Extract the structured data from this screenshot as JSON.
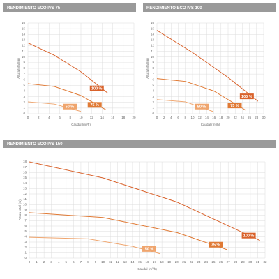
{
  "chart_data": [
    {
      "type": "line",
      "title": "RENDIMIENTO ECO IVS 75",
      "x_label": "Caudal (m³/h)",
      "y_label": "Altura total (m)",
      "xlim": [
        0,
        20
      ],
      "ylim": [
        0,
        16
      ],
      "xticks": [
        0,
        2,
        4,
        6,
        8,
        10,
        12,
        14,
        16,
        18,
        20
      ],
      "yticks": [
        0,
        1,
        2,
        3,
        4,
        5,
        6,
        7,
        8,
        9,
        10,
        11,
        12,
        13,
        14,
        15,
        16
      ],
      "grid": true,
      "series": [
        {
          "name": "100 %",
          "color": "#d9622b",
          "x": [
            0,
            5,
            10,
            15.1
          ],
          "values": [
            12.5,
            10.3,
            7.4,
            3.6
          ]
        },
        {
          "name": "75 %",
          "color": "#e07a35",
          "x": [
            0,
            5,
            10,
            14.7
          ],
          "values": [
            5.3,
            4.8,
            3.2,
            0.7
          ]
        },
        {
          "name": "50 %",
          "color": "#efa56e",
          "x": [
            0,
            5,
            10
          ],
          "values": [
            2.1,
            1.7,
            0.4
          ]
        }
      ]
    },
    {
      "type": "line",
      "title": "RENDIMIENTO ECO IVS 100",
      "x_label": "Caudal (m³/h)",
      "y_label": "Altura total (m)",
      "xlim": [
        0,
        30
      ],
      "ylim": [
        0,
        16
      ],
      "xticks": [
        0,
        2,
        4,
        6,
        8,
        10,
        12,
        14,
        16,
        18,
        20,
        22,
        24,
        26,
        28,
        30
      ],
      "yticks": [
        0,
        1,
        2,
        3,
        4,
        5,
        6,
        7,
        8,
        9,
        10,
        11,
        12,
        13,
        14,
        15,
        16
      ],
      "grid": true,
      "series": [
        {
          "name": "100 %",
          "color": "#d9622b",
          "x": [
            0,
            10,
            20,
            28.4
          ],
          "values": [
            14.7,
            10.8,
            6.4,
            2.2
          ]
        },
        {
          "name": "75 %",
          "color": "#e07a35",
          "x": [
            0,
            8,
            16,
            25
          ],
          "values": [
            6.2,
            5.7,
            4.0,
            0.6
          ]
        },
        {
          "name": "50 %",
          "color": "#efa56e",
          "x": [
            0,
            8,
            15.7
          ],
          "values": [
            2.5,
            2.1,
            0.4
          ]
        }
      ]
    },
    {
      "type": "line",
      "title": "RENDIMIENTO ECO IVS 150",
      "x_label": "Caudal (m³/h)",
      "y_label": "Altura total (m)",
      "xlim": [
        0,
        32
      ],
      "ylim": [
        0,
        18
      ],
      "xticks": [
        0,
        1,
        2,
        3,
        4,
        5,
        6,
        7,
        8,
        9,
        10,
        11,
        12,
        13,
        14,
        15,
        16,
        17,
        18,
        19,
        20,
        21,
        22,
        23,
        24,
        25,
        26,
        27,
        28,
        29,
        30,
        31,
        32
      ],
      "yticks": [
        0,
        1,
        2,
        3,
        4,
        5,
        6,
        7,
        8,
        9,
        10,
        11,
        12,
        13,
        14,
        15,
        16,
        17,
        18
      ],
      "grid": true,
      "series": [
        {
          "name": "100 %",
          "color": "#d9622b",
          "x": [
            0,
            10,
            20,
            31.3
          ],
          "values": [
            18,
            15,
            10.5,
            3.3
          ]
        },
        {
          "name": "75 %",
          "color": "#e07a35",
          "x": [
            0,
            10,
            20,
            26.8
          ],
          "values": [
            8.5,
            7.6,
            4.8,
            1.6
          ]
        },
        {
          "name": "50 %",
          "color": "#efa56e",
          "x": [
            0,
            8,
            14,
            17.8
          ],
          "values": [
            3.9,
            3.6,
            2.2,
            0.8
          ]
        }
      ]
    }
  ]
}
